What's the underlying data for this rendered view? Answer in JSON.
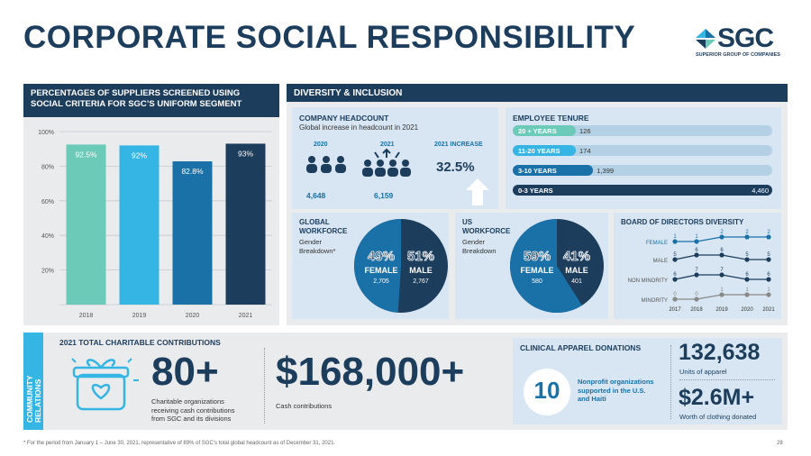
{
  "page": {
    "title": "CORPORATE SOCIAL RESPONSIBILITY",
    "page_number": "28",
    "footnote": "* For the period from January 1 – June 30, 2021, representative of 89% of SGC’s total global headcount as of December 31, 2021."
  },
  "logo": {
    "name": "SGC",
    "tagline": "SUPERIOR GROUP OF COMPANIES"
  },
  "suppliers": {
    "header": "PERCENTAGES OF SUPPLIERS SCREENED USING SOCIAL CRITERIA FOR SGC’S UNIFORM SEGMENT",
    "y_ticks": [
      "100%",
      "80%",
      "60%",
      "40%",
      "20%"
    ]
  },
  "chart_data": {
    "type": "bar",
    "categories": [
      "2018",
      "2019",
      "2020",
      "2021"
    ],
    "values": [
      92.5,
      92,
      82.8,
      93
    ],
    "value_labels": [
      "92.5%",
      "92%",
      "82.8%",
      "93%"
    ],
    "colors": [
      "#6ccab8",
      "#35b5e3",
      "#1a71a8",
      "#1d3d5c"
    ],
    "ylim": [
      0,
      100
    ],
    "title": "PERCENTAGES OF SUPPLIERS SCREENED USING SOCIAL CRITERIA FOR SGC’S UNIFORM SEGMENT"
  },
  "diversity": {
    "header": "DIVERSITY & INCLUSION",
    "headcount": {
      "title": "COMPANY HEADCOUNT",
      "subtitle": "Global increase in headcount in 2021",
      "y2020": "2020",
      "y2021": "2021",
      "increase_label": "2021 INCREASE",
      "v2020": "4,648",
      "v2021": "6,159",
      "increase": "32.5%"
    },
    "tenure": {
      "title": "EMPLOYEE TENURE",
      "rows": [
        {
          "label": "20 + YEARS",
          "value": "126",
          "fraction": 0.028,
          "color": "#6ccab8"
        },
        {
          "label": "11-20 YEARS",
          "value": "174",
          "fraction": 0.039,
          "color": "#35b5e3"
        },
        {
          "label": "3-10 YEARS",
          "value": "1,399",
          "fraction": 0.31,
          "color": "#1a71a8"
        },
        {
          "label": "0-3 YEARS",
          "value": "4,460",
          "fraction": 1.0,
          "color": "#1d3d5c"
        }
      ]
    },
    "global": {
      "title": "GLOBAL WORKFORCE",
      "sub1": "Gender",
      "sub2": "Breakdown*",
      "female_pct": "49%",
      "female_label": "FEMALE",
      "female_count": "2,705",
      "female_value": 49,
      "male_pct": "51%",
      "male_label": "MALE",
      "male_count": "2,767",
      "male_value": 51
    },
    "us": {
      "title": "US WORKFORCE",
      "sub1": "Gender",
      "sub2": "Breakdown",
      "female_pct": "59%",
      "female_label": "FEMALE",
      "female_count": "580",
      "female_value": 59,
      "male_pct": "41%",
      "male_label": "MALE",
      "male_count": "401",
      "male_value": 41
    },
    "board": {
      "title": "BOARD OF DIRECTORS DIVERSITY",
      "years": [
        "2017",
        "2018",
        "2019",
        "2020",
        "2021"
      ],
      "series": [
        {
          "name": "FEMALE",
          "values": [
            1,
            1,
            2,
            2,
            2
          ]
        },
        {
          "name": "MALE",
          "values": [
            5,
            6,
            6,
            5,
            5
          ]
        },
        {
          "name": "NON MINORITY",
          "values": [
            6,
            7,
            7,
            6,
            6
          ]
        },
        {
          "name": "MINORITY",
          "values": [
            0,
            0,
            1,
            1,
            1
          ]
        }
      ]
    }
  },
  "community": {
    "side_label_1": "COMMUNITY",
    "side_label_2": "RELATIONS",
    "contrib_title": "2021 TOTAL CHARITABLE CONTRIBUTIONS",
    "orgs_value": "80+",
    "orgs_desc_1": "Charitable organizations",
    "orgs_desc_2": "receiving cash contributions",
    "orgs_desc_3": "from SGC and its divisions",
    "cash_value": "$168,000+",
    "cash_desc": "Cash contributions",
    "apparel_title": "CLINICAL APPAREL DONATIONS",
    "nonprofit_count": "10",
    "nonprofit_desc_1": "Nonprofit organizations",
    "nonprofit_desc_2": "supported in the U.S.",
    "nonprofit_desc_3": "and Haiti",
    "units_value": "132,638",
    "units_desc": "Units of apparel",
    "worth_value": "$2.6M+",
    "worth_desc": "Worth of clothing donated"
  }
}
